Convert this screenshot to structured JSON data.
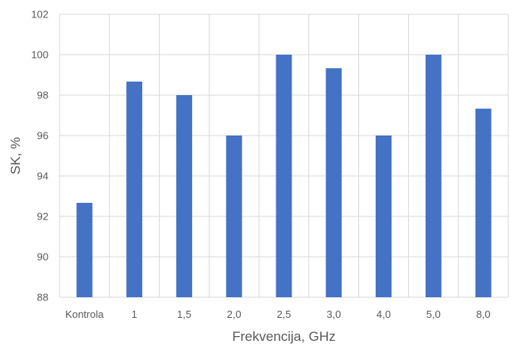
{
  "chart_data": {
    "type": "bar",
    "title": "",
    "xlabel": "Frekvencija, GHz",
    "ylabel": "SK, %",
    "categories": [
      "Kontrola",
      "1",
      "1,5",
      "2,0",
      "2,5",
      "3,0",
      "4,0",
      "5,0",
      "8,0"
    ],
    "values": [
      92.67,
      98.67,
      98.0,
      96.0,
      100.0,
      99.33,
      96.0,
      100.0,
      97.33
    ],
    "ylim": [
      88,
      102
    ],
    "yticks": [
      88,
      90,
      92,
      94,
      96,
      98,
      100,
      102
    ],
    "grid": "both",
    "legend": "none",
    "colors": {
      "bar": "#4472C4",
      "grid": "#D9D9D9",
      "text": "#595959"
    }
  }
}
